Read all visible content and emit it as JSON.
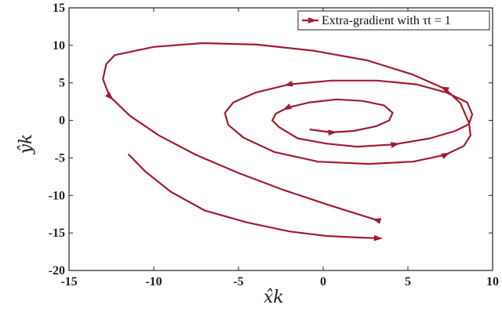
{
  "chart_data": {
    "type": "line",
    "title": "",
    "xlabel": "x̂k",
    "ylabel": "ŷk",
    "xlim": [
      -15,
      10
    ],
    "ylim": [
      -20,
      15
    ],
    "xticks": [
      "-15",
      "-10",
      "-5",
      "0",
      "5",
      "10"
    ],
    "yticks": [
      "15",
      "10",
      "5",
      "0",
      "-5",
      "-10",
      "-15",
      "-20"
    ],
    "grid": false,
    "legend_position": "top-right",
    "colors": {
      "series": "#a01c32",
      "axis": "#222222"
    },
    "series": [
      {
        "name": "Extra-gradient with τt = 1",
        "x": [
          -0.8,
          0.5,
          1.8,
          3.1,
          3.9,
          4.1,
          3.6,
          2.3,
          0.8,
          -0.8,
          -2.1,
          -2.8,
          -3.0,
          -2.6,
          -1.5,
          0.2,
          2.0,
          4.2,
          6.3,
          7.8,
          8.6,
          8.8,
          8.5,
          7.3,
          5.5,
          3.2,
          0.5,
          -2.0,
          -4.0,
          -5.3,
          -5.8,
          -5.6,
          -4.7,
          -2.9,
          -0.3,
          2.7,
          5.3,
          7.2,
          8.3,
          8.7,
          8.6,
          8.1,
          7.2,
          5.3,
          2.6,
          -0.6,
          -3.9,
          -7.1,
          -10.0,
          -12.3,
          -12.8,
          -13.0,
          -12.6,
          -11.4,
          -9.7,
          -7.5,
          -5.0,
          -2.3,
          0.5,
          3.2
        ],
        "y": [
          -1.2,
          -1.6,
          -1.4,
          -0.8,
          0.0,
          1.0,
          2.0,
          2.6,
          2.8,
          2.4,
          1.7,
          0.9,
          0.0,
          -0.9,
          -2.4,
          -3.1,
          -3.5,
          -3.2,
          -2.4,
          -1.4,
          -0.5,
          0.8,
          2.4,
          3.7,
          4.8,
          5.3,
          5.3,
          4.8,
          3.7,
          2.4,
          1.0,
          -0.6,
          -2.3,
          -4.2,
          -5.5,
          -5.8,
          -5.5,
          -4.6,
          -3.4,
          -2.0,
          -0.3,
          2.3,
          4.2,
          6.1,
          8.0,
          9.3,
          10.1,
          10.3,
          9.8,
          8.7,
          7.5,
          5.5,
          3.2,
          0.6,
          -2.0,
          -4.6,
          -7.0,
          -9.3,
          -11.4,
          -13.3
        ],
        "x_tail": [
          -11.5,
          -10.5,
          -9.0,
          -7.0,
          -4.5,
          -2.0,
          0.2,
          2.0,
          3.2
        ],
        "y_tail": [
          -4.5,
          -6.8,
          -9.5,
          -12.0,
          -13.6,
          -14.8,
          -15.4,
          -15.6,
          -15.7
        ]
      }
    ]
  }
}
